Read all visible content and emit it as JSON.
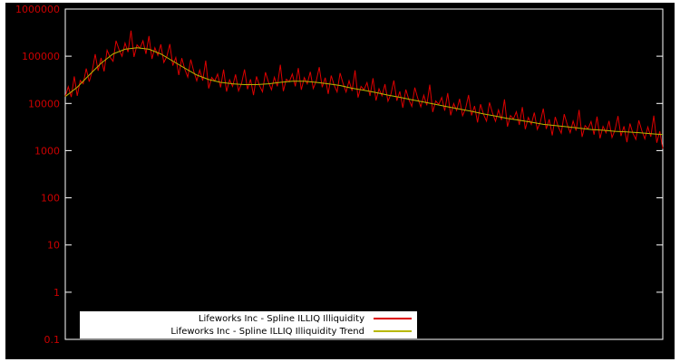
{
  "chart": {
    "background": "#000000",
    "frame_color": "#ffffff",
    "tick_label_color": "#cc0000",
    "legend": {
      "entries": [
        {
          "label": "Lifeworks Inc - Spline ILLIQ Illiquidity",
          "color": "#dd0000"
        },
        {
          "label": "Lifeworks Inc - Spline ILLIQ Illiquidity Trend",
          "color": "#b8b800"
        }
      ]
    }
  },
  "chart_data": {
    "type": "line",
    "title": "",
    "xlabel": "",
    "ylabel": "",
    "y_scale": "log",
    "ylim": [
      0.1,
      1000000
    ],
    "y_ticks": [
      "1000000",
      "100000",
      "10000",
      "1000",
      "100",
      "10",
      "1",
      "0.1"
    ],
    "grid": false,
    "legend_position": "bottom-center",
    "series": [
      {
        "name": "Lifeworks Inc - Spline ILLIQ Illiquidity",
        "color": "#dd0000",
        "values": [
          14000,
          22600,
          13700,
          37200,
          14500,
          30600,
          26100,
          55000,
          28800,
          48300,
          111000,
          49200,
          92300,
          47700,
          134000,
          95000,
          78400,
          213000,
          138000,
          99800,
          190000,
          122000,
          350000,
          96500,
          174000,
          148000,
          212000,
          112000,
          268000,
          87800,
          151000,
          104000,
          179000,
          73900,
          98700,
          181000,
          63200,
          94100,
          39900,
          91500,
          53200,
          36100,
          85100,
          47900,
          30000,
          51000,
          30400,
          81100,
          20800,
          35500,
          29900,
          41900,
          21800,
          52300,
          17800,
          31800,
          22900,
          41200,
          18400,
          26500,
          52500,
          20000,
          32500,
          15000,
          37500,
          23800,
          17700,
          45900,
          28300,
          19500,
          35800,
          23000,
          66000,
          18200,
          32600,
          28700,
          42200,
          23000,
          56100,
          19500,
          35400,
          26000,
          46600,
          20700,
          29800,
          58800,
          22000,
          35100,
          15900,
          39000,
          24200,
          17500,
          44100,
          26400,
          17400,
          30300,
          18400,
          50400,
          13300,
          23000,
          19500,
          27600,
          14400,
          34100,
          11500,
          20400,
          14500,
          25600,
          11100,
          15800,
          30700,
          11400,
          18000,
          8100,
          19700,
          12100,
          8650,
          21600,
          12800,
          8500,
          14900,
          9100,
          24900,
          6560,
          11300,
          9500,
          13400,
          7010,
          16600,
          5610,
          9920,
          7080,
          12500,
          5470,
          7760,
          15100,
          5590,
          8840,
          3950,
          9590,
          5880,
          4200,
          10500,
          6260,
          4160,
          7290,
          4450,
          12200,
          3210,
          5520,
          4700,
          6670,
          3510,
          8360,
          2840,
          5040,
          3610,
          6400,
          2810,
          3990,
          7770,
          2880,
          4620,
          2100,
          5180,
          3230,
          2350,
          5940,
          3580,
          2400,
          4250,
          2640,
          7320,
          1950,
          3390,
          2900,
          4130,
          2180,
          5270,
          1820,
          3270,
          2380,
          4270,
          1900,
          2730,
          5400,
          2040,
          3290,
          1510,
          3750,
          2350,
          1720,
          4370,
          2640,
          1780,
          3170,
          1970,
          5500,
          1470,
          2580,
          1100
        ]
      },
      {
        "name": "Lifeworks Inc - Spline ILLIQ Illiquidity Trend",
        "color": "#b8b800",
        "values": [
          14000,
          22000,
          40000,
          71000,
          112000,
          141000,
          151000,
          141000,
          112000,
          79000,
          56000,
          40000,
          32000,
          28000,
          26000,
          25000,
          25000,
          26000,
          28000,
          29500,
          29500,
          28000,
          26000,
          24000,
          21000,
          19000,
          17000,
          15000,
          13500,
          12000,
          10700,
          9500,
          8500,
          7600,
          6800,
          6000,
          5400,
          4800,
          4400,
          4000,
          3600,
          3400,
          3200,
          3000,
          2800,
          2700,
          2570,
          2500,
          2400,
          2290,
          2190
        ]
      }
    ]
  }
}
